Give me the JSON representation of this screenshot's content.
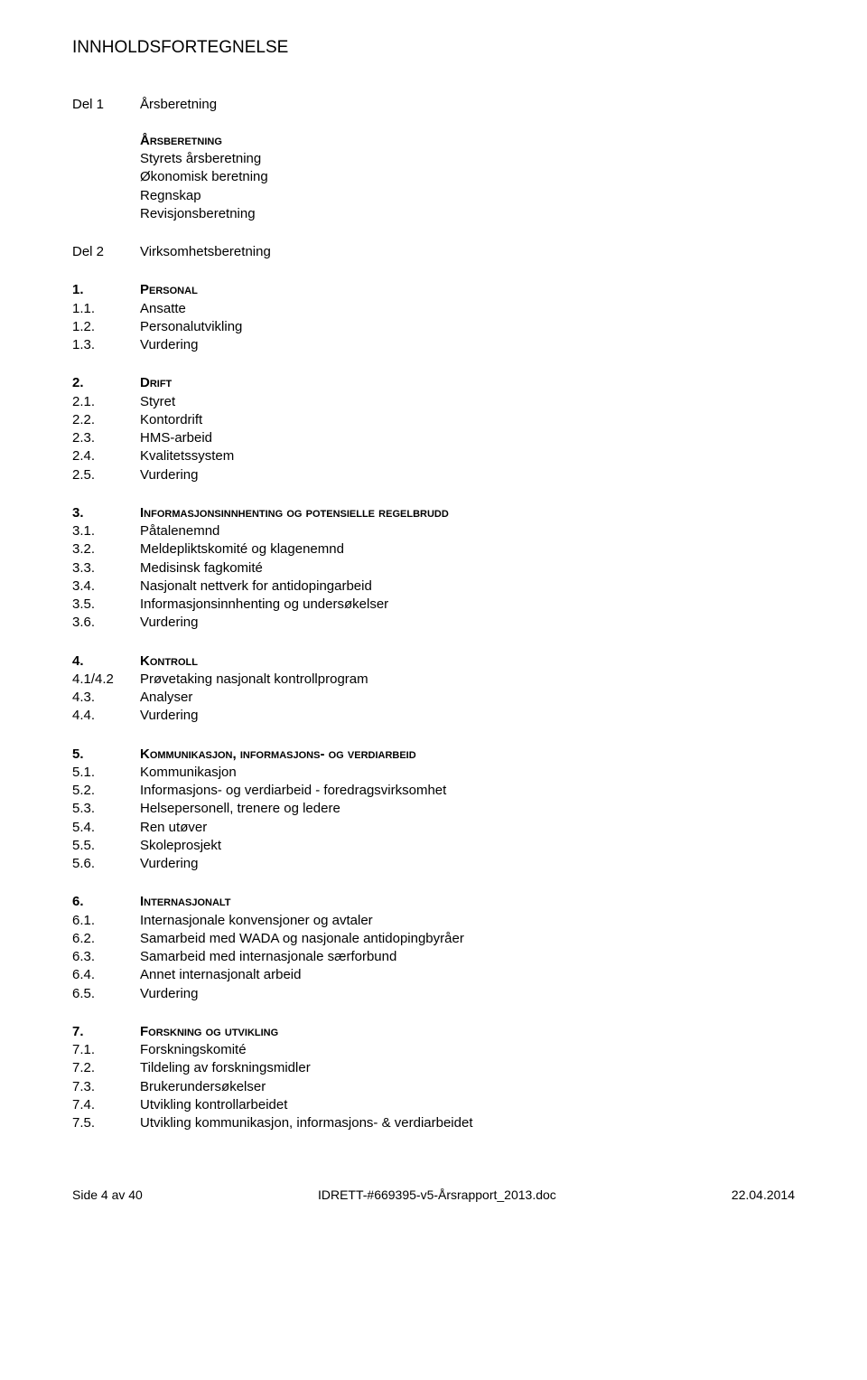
{
  "title": "INNHOLDSFORTEGNELSE",
  "parts": {
    "part1": {
      "label": "Del 1",
      "title": "Årsberetning"
    },
    "part2": {
      "label": "Del 2",
      "title": "Virksomhetsberetning"
    }
  },
  "ars_block": {
    "heading": "Årsberetning",
    "items": [
      "Styrets årsberetning",
      "Økonomisk beretning",
      "Regnskap",
      "Revisjonsberetning"
    ]
  },
  "sections": [
    {
      "num": "1.",
      "title": "Personal",
      "items": [
        {
          "num": "1.1.",
          "text": "Ansatte"
        },
        {
          "num": "1.2.",
          "text": "Personalutvikling"
        },
        {
          "num": "1.3.",
          "text": "Vurdering"
        }
      ]
    },
    {
      "num": "2.",
      "title": "Drift",
      "items": [
        {
          "num": "2.1.",
          "text": "Styret"
        },
        {
          "num": "2.2.",
          "text": "Kontordrift"
        },
        {
          "num": "2.3.",
          "text": "HMS-arbeid"
        },
        {
          "num": "2.4.",
          "text": "Kvalitetssystem"
        },
        {
          "num": "2.5.",
          "text": "Vurdering"
        }
      ]
    },
    {
      "num": "3.",
      "title": "Informasjonsinnhenting og potensielle regelbrudd",
      "items": [
        {
          "num": "3.1.",
          "text": "Påtalenemnd"
        },
        {
          "num": "3.2.",
          "text": "Meldepliktskomité og klagenemnd"
        },
        {
          "num": "3.3.",
          "text": "Medisinsk fagkomité"
        },
        {
          "num": "3.4.",
          "text": "Nasjonalt nettverk for antidopingarbeid"
        },
        {
          "num": "3.5.",
          "text": "Informasjonsinnhenting og undersøkelser"
        },
        {
          "num": "3.6.",
          "text": "Vurdering"
        }
      ]
    },
    {
      "num": "4.",
      "title": "Kontroll",
      "items": [
        {
          "num": "4.1/4.2",
          "text": "Prøvetaking nasjonalt kontrollprogram"
        },
        {
          "num": "4.3.",
          "text": "Analyser"
        },
        {
          "num": "4.4.",
          "text": "Vurdering"
        }
      ]
    },
    {
      "num": "5.",
      "title": "Kommunikasjon, informasjons- og verdiarbeid",
      "items": [
        {
          "num": "5.1.",
          "text": "Kommunikasjon"
        },
        {
          "num": "5.2.",
          "text": "Informasjons- og verdiarbeid - foredragsvirksomhet"
        },
        {
          "num": "5.3.",
          "text": "Helsepersonell, trenere og ledere"
        },
        {
          "num": "5.4.",
          "text": "Ren utøver"
        },
        {
          "num": "5.5.",
          "text": "Skoleprosjekt"
        },
        {
          "num": "5.6.",
          "text": "Vurdering"
        }
      ]
    },
    {
      "num": "6.",
      "title": "Internasjonalt",
      "items": [
        {
          "num": "6.1.",
          "text": "Internasjonale konvensjoner og avtaler"
        },
        {
          "num": "6.2.",
          "text": "Samarbeid med WADA og nasjonale antidopingbyråer"
        },
        {
          "num": "6.3.",
          "text": "Samarbeid med internasjonale særforbund"
        },
        {
          "num": "6.4.",
          "text": "Annet internasjonalt arbeid"
        },
        {
          "num": "6.5.",
          "text": "Vurdering"
        }
      ]
    },
    {
      "num": "7.",
      "title": "Forskning og utvikling",
      "items": [
        {
          "num": "7.1.",
          "text": "Forskningskomité"
        },
        {
          "num": "7.2.",
          "text": "Tildeling av forskningsmidler"
        },
        {
          "num": "7.3.",
          "text": "Brukerundersøkelser"
        },
        {
          "num": "7.4.",
          "text": "Utvikling kontrollarbeidet"
        },
        {
          "num": "7.5.",
          "text": "Utvikling kommunikasjon, informasjons- & verdiarbeidet"
        }
      ]
    }
  ],
  "footer": {
    "left": "Side 4 av 40",
    "center": "IDRETT-#669395-v5-Årsrapport_2013.doc",
    "right": "22.04.2014"
  }
}
